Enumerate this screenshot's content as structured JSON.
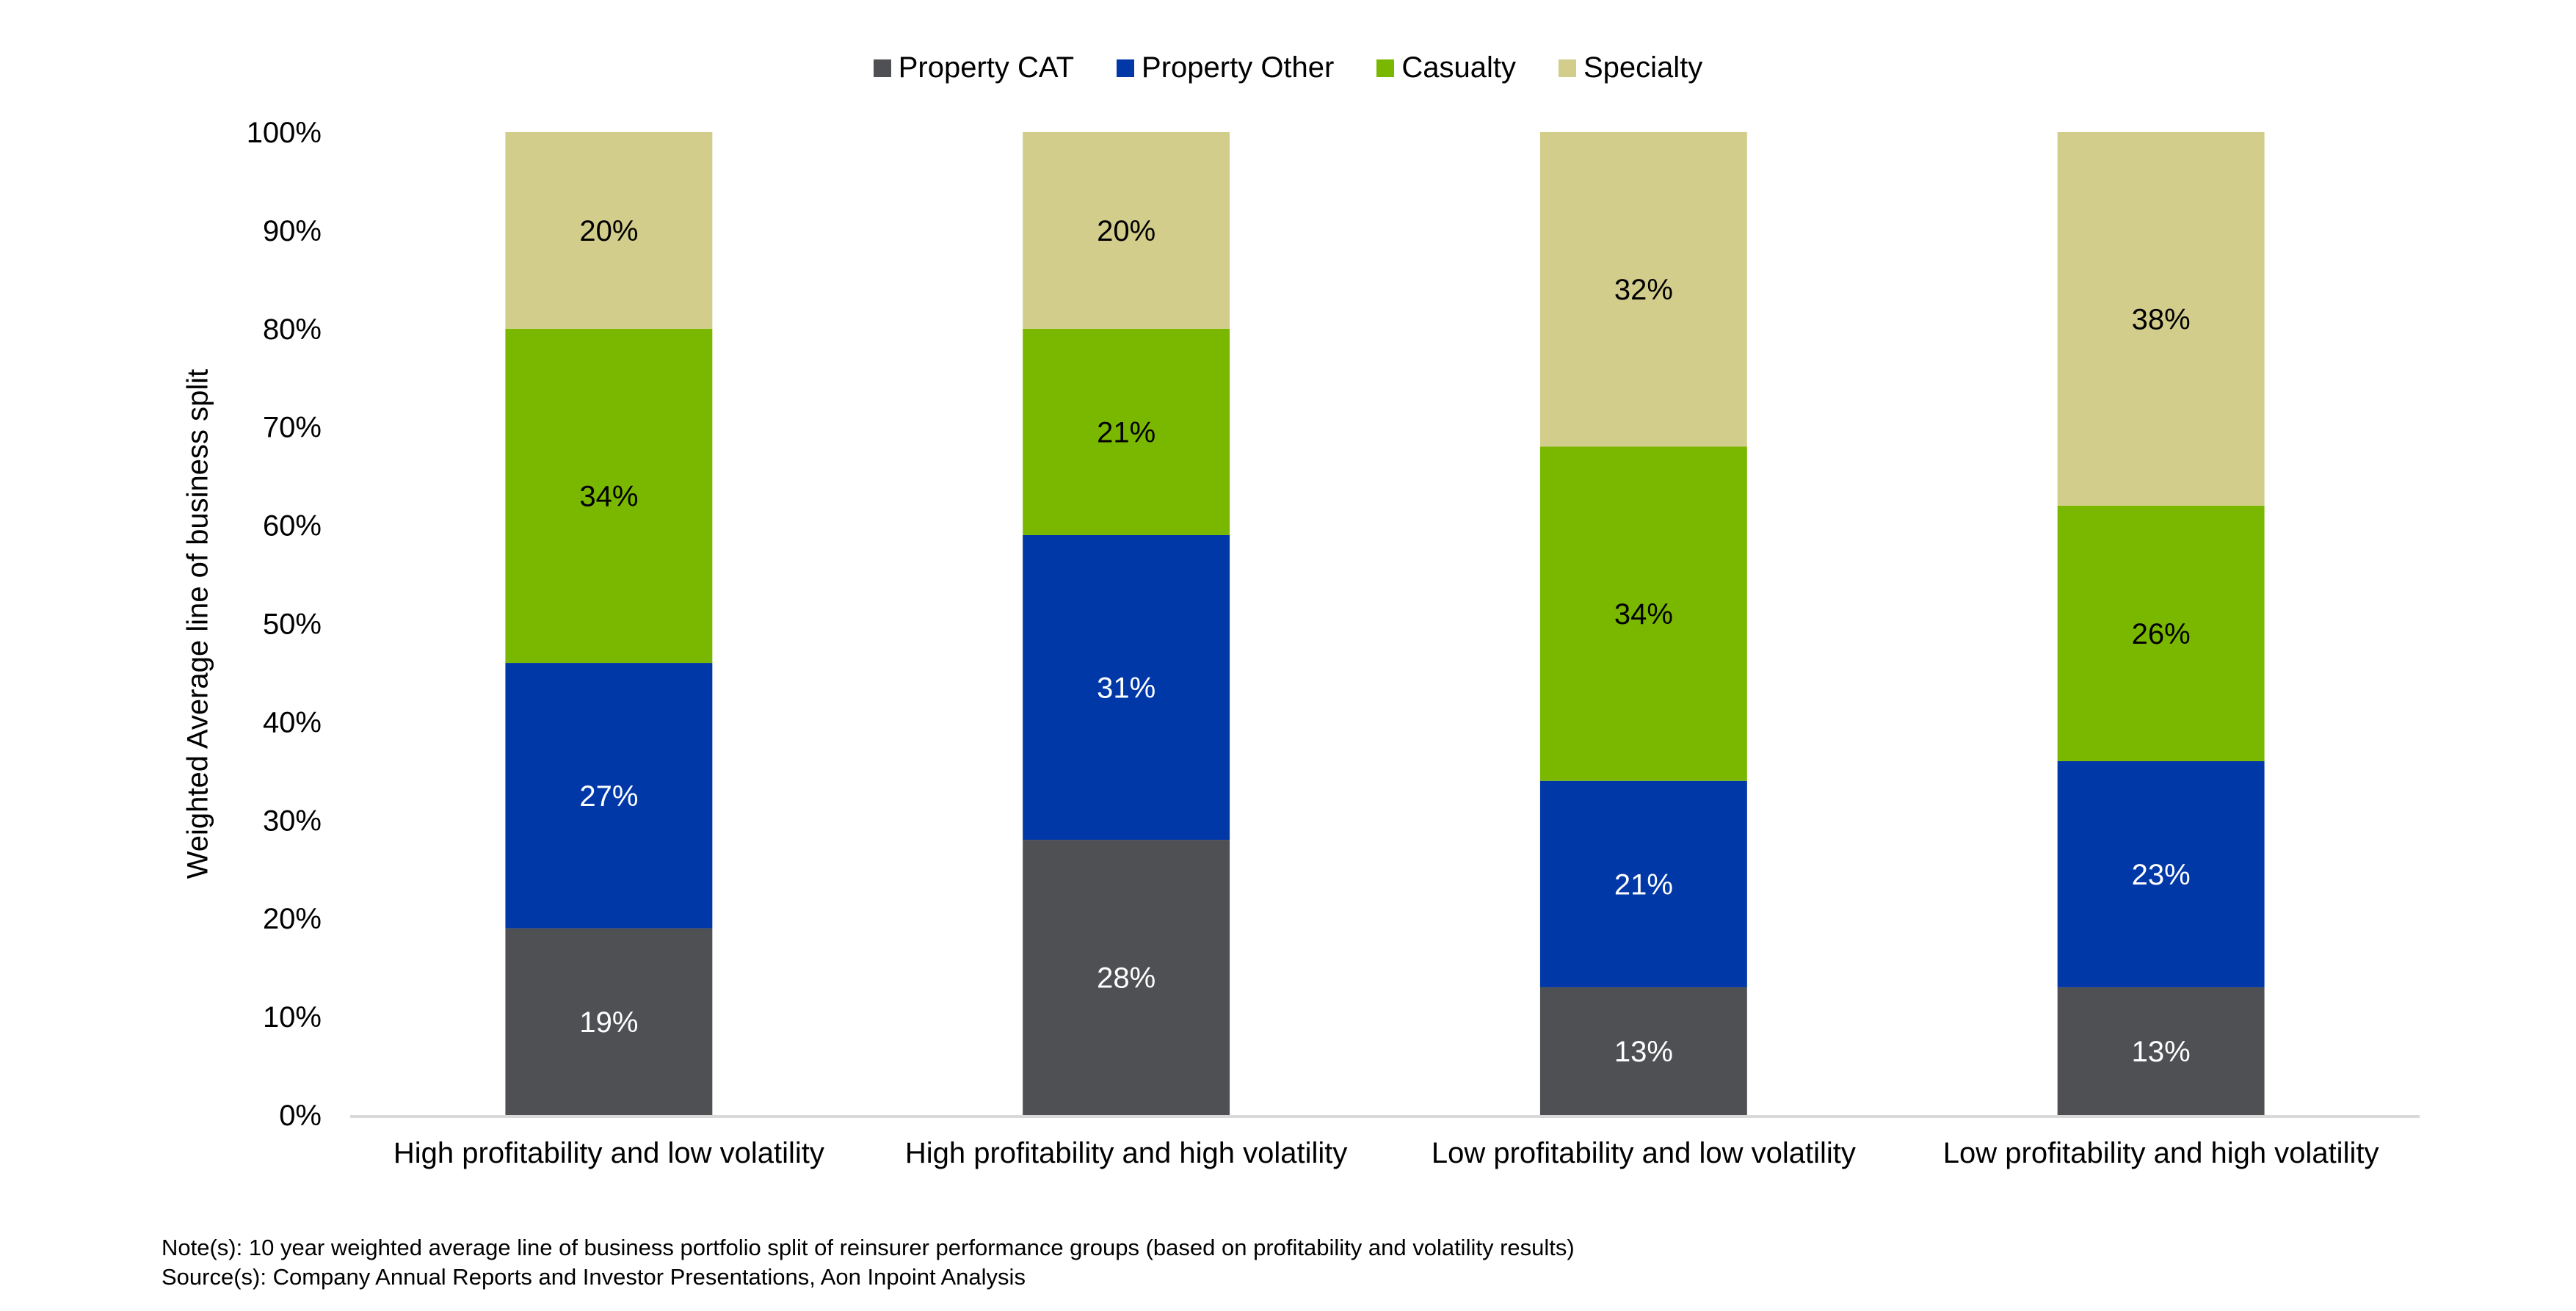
{
  "chart_data": {
    "type": "bar",
    "stacked": true,
    "title": "",
    "xlabel": "",
    "ylabel": "Weighted Average line of business split",
    "ylim": [
      0,
      100
    ],
    "yticks": [
      "0%",
      "10%",
      "20%",
      "30%",
      "40%",
      "50%",
      "60%",
      "70%",
      "80%",
      "90%",
      "100%"
    ],
    "grid": false,
    "legend_position": "top-center",
    "categories": [
      "High profitability and low volatility",
      "High profitability and high volatility",
      "Low profitability and low volatility",
      "Low profitability and high volatility"
    ],
    "series": [
      {
        "name": "Property CAT",
        "color": "#4f5054",
        "label_color": "#ffffff",
        "values": [
          19,
          28,
          13,
          13
        ]
      },
      {
        "name": "Property Other",
        "color": "#0038a8",
        "label_color": "#ffffff",
        "values": [
          27,
          31,
          21,
          23
        ]
      },
      {
        "name": "Casualty",
        "color": "#7ab800",
        "label_color": "#000000",
        "values": [
          34,
          21,
          34,
          26
        ]
      },
      {
        "name": "Specialty",
        "color": "#d3cd8b",
        "label_color": "#000000",
        "values": [
          20,
          20,
          32,
          38
        ]
      }
    ],
    "data_label_format": "{v}%"
  },
  "notes": {
    "note": "Note(s):  10 year weighted average line of business portfolio split of reinsurer performance groups (based on profitability and volatility results)",
    "source": "Source(s):  Company Annual Reports and  Investor Presentations, Aon Inpoint Analysis"
  }
}
